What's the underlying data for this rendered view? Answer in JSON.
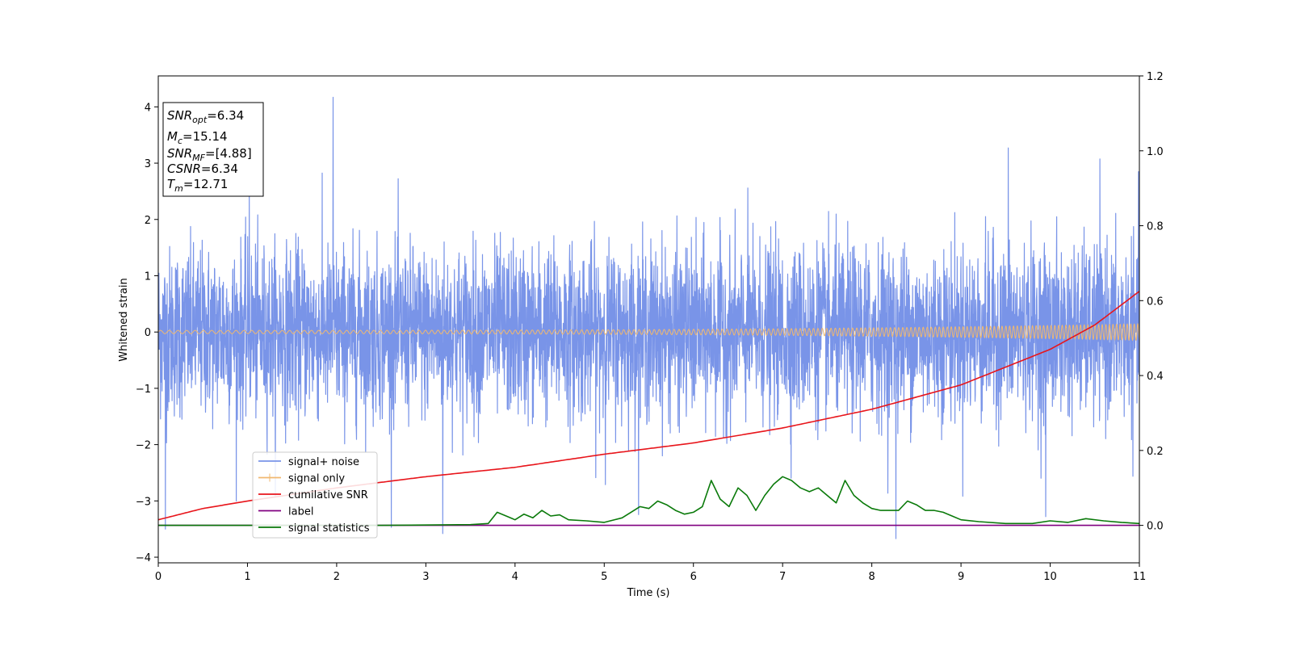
{
  "chart_data": {
    "type": "line",
    "xlabel": "Time (s)",
    "ylabel": "Whitened strain",
    "xlim": [
      0,
      11
    ],
    "ylim_left": [
      -4.1,
      4.55
    ],
    "ylim_right": [
      -0.1,
      1.2
    ],
    "xticks": [
      "0",
      "1",
      "2",
      "3",
      "4",
      "5",
      "6",
      "7",
      "8",
      "9",
      "10",
      "11"
    ],
    "yticks_left": [
      "−4",
      "−3",
      "−2",
      "−1",
      "0",
      "1",
      "2",
      "3",
      "4"
    ],
    "yticks_right": [
      "0.0",
      "0.2",
      "0.4",
      "0.6",
      "0.8",
      "1.0",
      "1.2"
    ],
    "grid": false,
    "legend_position": "lower-left",
    "stats_box": {
      "lines": [
        {
          "sym": "SNR",
          "sub": "opt",
          "val": "=6.34"
        },
        {
          "sym": "M",
          "sub": "c",
          "val": "=15.14"
        },
        {
          "sym": "SNR",
          "sub": "MF",
          "val": "=[4.88]"
        },
        {
          "sym": "CSNR",
          "sub": "",
          "val": "=6.34"
        },
        {
          "sym": "T",
          "sub": "m",
          "val": "=12.71"
        }
      ]
    },
    "series": [
      {
        "name": "signal+ noise",
        "color": "#7994e8",
        "axis": "left",
        "kind": "noise",
        "sigma": 0.75,
        "notable_peaks": [
          [
            1.96,
            4.17
          ],
          [
            1.02,
            2.45
          ],
          [
            3.19,
            -3.58
          ],
          [
            8.27,
            -3.67
          ],
          [
            0.08,
            -3.5
          ],
          [
            9.95,
            -3.28
          ],
          [
            9.53,
            3.27
          ]
        ]
      },
      {
        "name": "signal only",
        "color": "#f0b870",
        "axis": "left",
        "kind": "chirp",
        "amplitude_start": 0.03,
        "amplitude_end": 0.15
      },
      {
        "name": "cumilative SNR",
        "color": "#e8151b",
        "axis": "right",
        "x": [
          0,
          0.5,
          1,
          2,
          3,
          4,
          5,
          6,
          7,
          8,
          9,
          10,
          10.5,
          11
        ],
        "y": [
          0.015,
          0.045,
          0.065,
          0.1,
          0.13,
          0.155,
          0.19,
          0.22,
          0.26,
          0.31,
          0.375,
          0.47,
          0.535,
          0.625
        ]
      },
      {
        "name": "label",
        "color": "#800080",
        "axis": "right",
        "x": [
          0,
          11
        ],
        "y": [
          0.0,
          0.0
        ]
      },
      {
        "name": "signal statistics",
        "color": "#0a7a0a",
        "axis": "right",
        "x": [
          0,
          2.5,
          3.5,
          3.7,
          3.8,
          3.9,
          4.0,
          4.1,
          4.2,
          4.3,
          4.4,
          4.5,
          4.6,
          4.8,
          5.0,
          5.2,
          5.3,
          5.4,
          5.5,
          5.6,
          5.7,
          5.8,
          5.9,
          6.0,
          6.1,
          6.2,
          6.3,
          6.4,
          6.5,
          6.6,
          6.7,
          6.8,
          6.9,
          7.0,
          7.1,
          7.2,
          7.3,
          7.4,
          7.5,
          7.6,
          7.7,
          7.8,
          7.9,
          8.0,
          8.1,
          8.3,
          8.4,
          8.5,
          8.6,
          8.7,
          8.8,
          8.9,
          9.0,
          9.2,
          9.5,
          9.8,
          10.0,
          10.2,
          10.4,
          10.6,
          10.8,
          11.0
        ],
        "y": [
          0.0,
          0.0,
          0.002,
          0.005,
          0.035,
          0.025,
          0.015,
          0.03,
          0.02,
          0.04,
          0.025,
          0.028,
          0.015,
          0.012,
          0.008,
          0.02,
          0.035,
          0.05,
          0.045,
          0.065,
          0.055,
          0.04,
          0.03,
          0.035,
          0.05,
          0.12,
          0.07,
          0.05,
          0.1,
          0.08,
          0.04,
          0.08,
          0.11,
          0.13,
          0.12,
          0.1,
          0.09,
          0.1,
          0.08,
          0.06,
          0.12,
          0.08,
          0.06,
          0.045,
          0.04,
          0.04,
          0.065,
          0.055,
          0.04,
          0.04,
          0.035,
          0.025,
          0.015,
          0.01,
          0.005,
          0.005,
          0.012,
          0.008,
          0.018,
          0.012,
          0.008,
          0.005
        ]
      }
    ]
  }
}
